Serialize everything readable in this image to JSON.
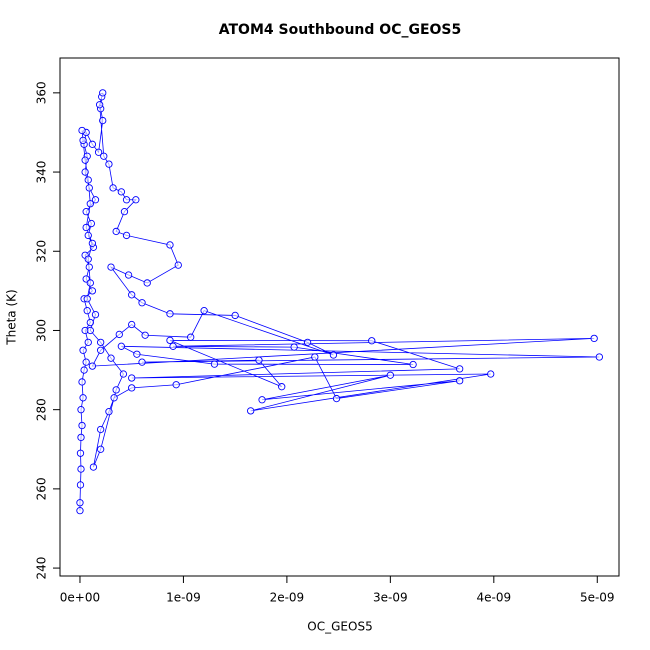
{
  "chart_data": {
    "type": "line",
    "title": "ATOM4 Southbound OC_GEOS5",
    "x_label": "OC_GEOS5",
    "y_label": "Theta (K)",
    "series": [
      {
        "color": "#0000ff",
        "marker": "circle",
        "x": [
          0,
          0,
          5e-12,
          1e-11,
          5e-12,
          1e-11,
          2e-11,
          1e-11,
          3e-11,
          2e-11,
          4e-11,
          6e-11,
          3e-11,
          8e-11,
          5e-11,
          1e-10,
          7e-11,
          4e-11,
          1.2e-10,
          6e-11,
          9e-11,
          5e-11,
          1.3e-10,
          8e-11,
          1.1e-10,
          6e-11,
          1.5e-10,
          9e-11,
          5e-11,
          7e-11,
          4e-11,
          6e-11,
          1.2e-10,
          1.8e-10,
          2.2e-10,
          2e-10,
          2.1e-10,
          2.2e-10,
          1.9e-10,
          2.3e-10,
          2.8e-10,
          3.2e-10,
          4e-10,
          4.5e-10,
          5.4e-10,
          4.3e-10,
          3.5e-10,
          4.5e-10,
          8.7e-10,
          9.5e-10,
          6.5e-10,
          4.7e-10,
          3e-10,
          5e-10,
          6e-10,
          8.7e-10,
          1.5e-09,
          2.2e-09,
          2.45e-09,
          1.2e-09,
          1.07e-09,
          6.3e-10,
          5e-10,
          3.8e-10,
          2e-10,
          1.2e-10,
          4.97e-09,
          9e-10,
          2.07e-09,
          3.22e-09,
          1.3e-09,
          5.5e-10,
          4e-10,
          5.02e-09,
          6e-10,
          1.73e-09,
          1.95e-09,
          8.7e-10,
          2.82e-09,
          3.67e-09,
          5e-10,
          3.97e-09,
          1.65e-09,
          3e-09,
          1.76e-09,
          3.67e-09,
          2.48e-09,
          2.27e-09,
          9.3e-10,
          5e-10,
          3.3e-10,
          2.8e-10,
          2e-10,
          1.3e-10,
          2e-10,
          3.5e-10,
          4.2e-10,
          3e-10,
          2e-10,
          1e-10,
          1.5e-10,
          7e-11,
          1e-10,
          8e-11,
          1.2e-10,
          6e-11,
          1e-10,
          8e-11,
          5e-11,
          3e-11,
          2e-11
        ],
        "values": [
          254.5,
          256.5,
          261,
          265,
          269,
          273,
          276,
          280,
          283,
          287,
          290,
          292,
          295,
          297,
          300,
          302,
          305,
          308,
          310,
          313,
          316,
          319,
          321,
          324,
          327,
          330,
          333,
          336,
          340,
          344,
          347,
          350,
          347,
          345,
          353,
          356,
          359,
          360,
          357,
          344,
          342,
          336,
          335,
          333,
          333,
          330,
          325,
          324,
          321.6,
          316.5,
          312,
          314,
          316,
          309,
          307,
          304.2,
          303.8,
          297,
          293.8,
          305,
          298.3,
          298.8,
          301.5,
          299,
          295,
          291,
          298,
          296,
          295.8,
          291.4,
          291.5,
          294,
          296,
          293.3,
          292,
          292.5,
          285.8,
          297.5,
          297.4,
          290.3,
          288,
          289,
          279.7,
          288.7,
          282.5,
          287.3,
          282.8,
          293.3,
          286.3,
          285.5,
          283,
          279.5,
          275,
          265.5,
          270,
          285,
          289,
          293,
          297,
          300,
          304,
          308,
          312,
          318,
          322,
          326,
          332,
          338,
          343,
          348,
          350.5
        ]
      }
    ],
    "xlim": [
      -1.93e-10,
      5.21e-09
    ],
    "ylim": [
      238,
      368.8
    ],
    "xticks": [
      {
        "value": 0,
        "label": "0e+00"
      },
      {
        "value": 1e-09,
        "label": "1e-09"
      },
      {
        "value": 2e-09,
        "label": "2e-09"
      },
      {
        "value": 3e-09,
        "label": "3e-09"
      },
      {
        "value": 4e-09,
        "label": "4e-09"
      },
      {
        "value": 5e-09,
        "label": "5e-09"
      }
    ],
    "yticks": [
      240,
      260,
      280,
      300,
      320,
      340,
      360
    ]
  }
}
